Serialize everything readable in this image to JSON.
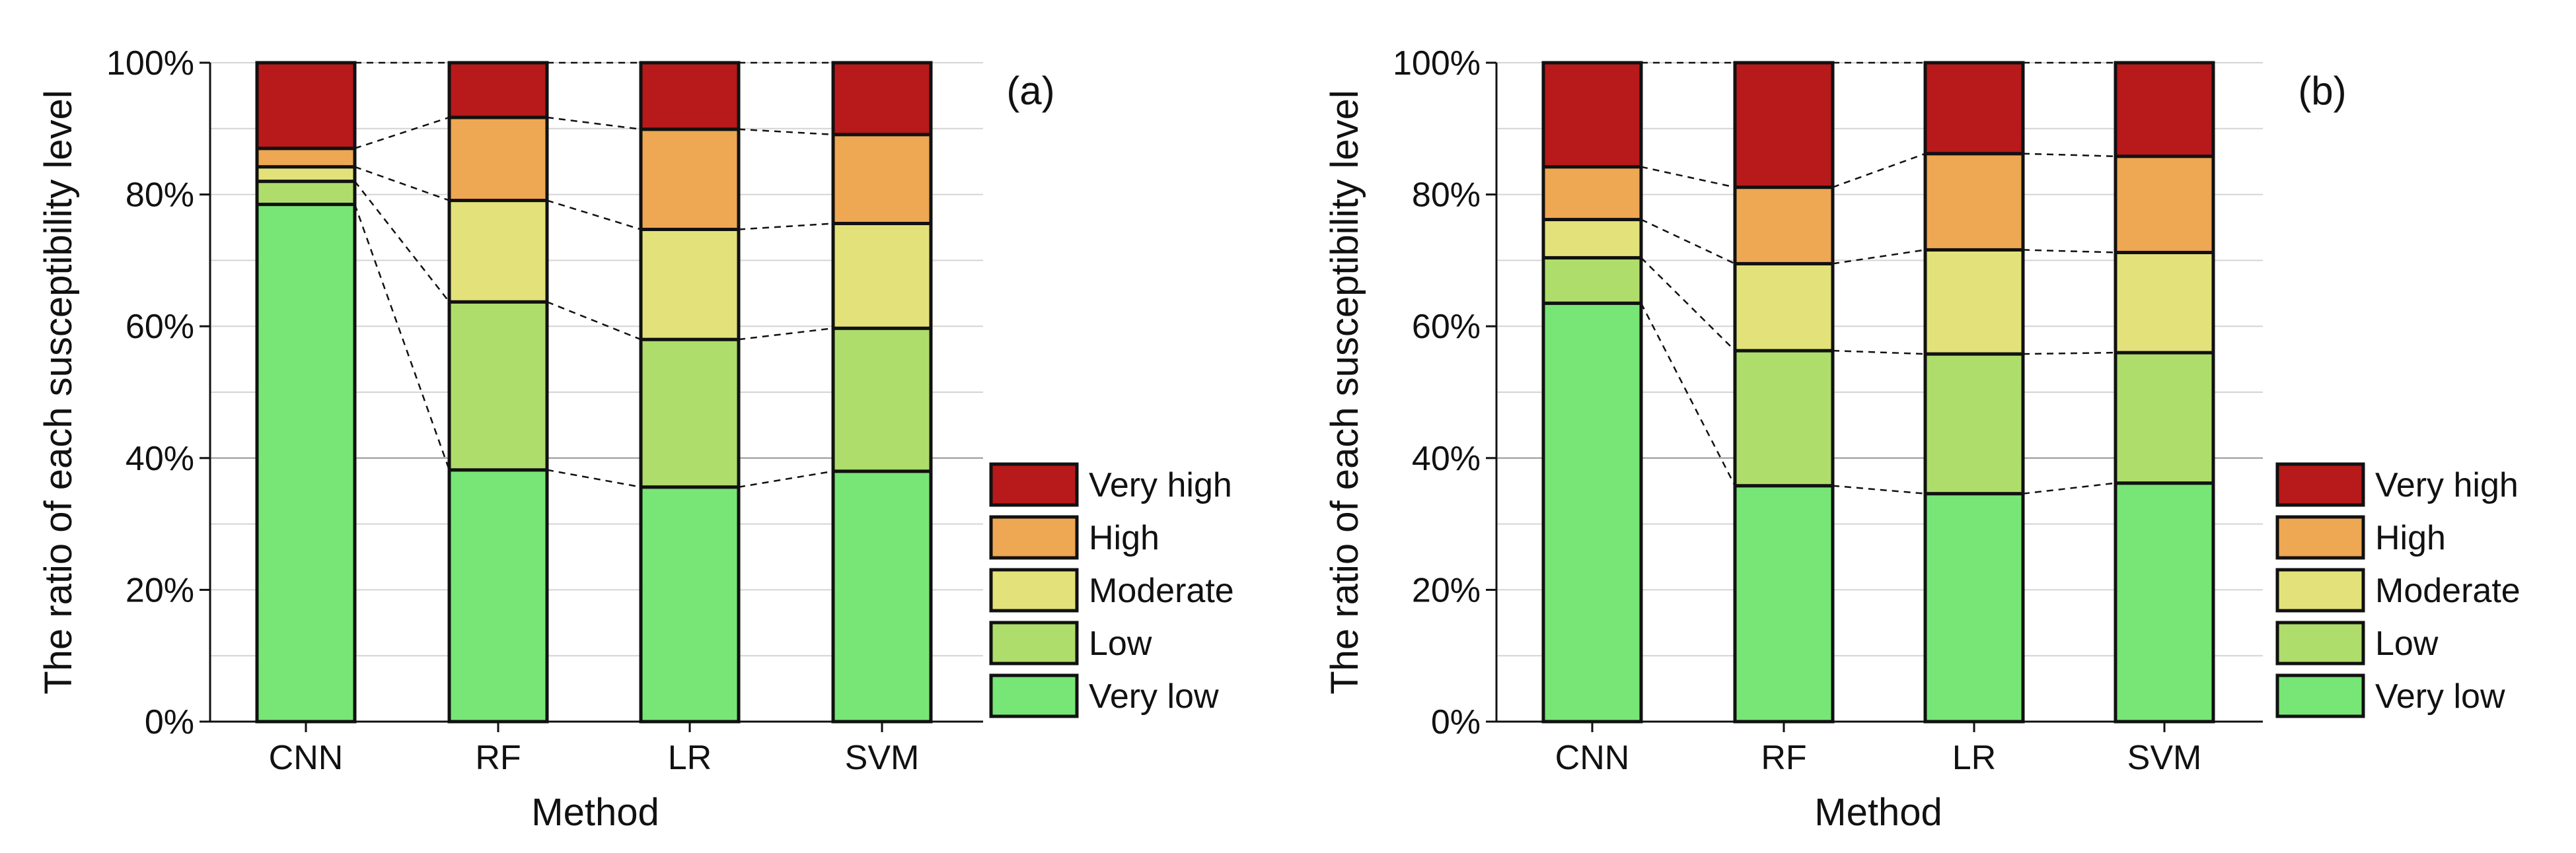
{
  "figure": {
    "legend_order": [
      "Very high",
      "High",
      "Moderate",
      "Low",
      "Very low"
    ]
  },
  "chart_data": [
    {
      "type": "bar",
      "stacked": true,
      "panel_label": "(a)",
      "xlabel": "Method",
      "ylabel": "The ratio of each susceptibility level",
      "categories": [
        "CNN",
        "RF",
        "LR",
        "SVM"
      ],
      "yticks": [
        "0%",
        "20%",
        "40%",
        "60%",
        "80%",
        "100%"
      ],
      "ylim": [
        0,
        100
      ],
      "legend_position": "bottom-right",
      "series": [
        {
          "name": "Very low",
          "color": "#77e676",
          "values": [
            78.5,
            38.2,
            35.6,
            38.0
          ]
        },
        {
          "name": "Low",
          "color": "#aedd6b",
          "values": [
            3.5,
            25.5,
            22.4,
            21.7
          ]
        },
        {
          "name": "Moderate",
          "color": "#e3e27a",
          "values": [
            2.2,
            15.4,
            16.7,
            15.9
          ]
        },
        {
          "name": "High",
          "color": "#eea752",
          "values": [
            2.8,
            12.6,
            15.2,
            13.5
          ]
        },
        {
          "name": "Very high",
          "color": "#b8191b",
          "values": [
            13.0,
            8.3,
            10.1,
            10.9
          ]
        }
      ]
    },
    {
      "type": "bar",
      "stacked": true,
      "panel_label": "(b)",
      "xlabel": "Method",
      "ylabel": "The ratio of each susceptibility level",
      "categories": [
        "CNN",
        "RF",
        "LR",
        "SVM"
      ],
      "yticks": [
        "0%",
        "20%",
        "40%",
        "60%",
        "80%",
        "100%"
      ],
      "ylim": [
        0,
        100
      ],
      "legend_position": "bottom-right",
      "series": [
        {
          "name": "Very low",
          "color": "#77e676",
          "values": [
            63.5,
            35.8,
            34.6,
            36.2
          ]
        },
        {
          "name": "Low",
          "color": "#aedd6b",
          "values": [
            6.9,
            20.5,
            21.2,
            19.8
          ]
        },
        {
          "name": "Moderate",
          "color": "#e3e27a",
          "values": [
            5.8,
            13.2,
            15.8,
            15.2
          ]
        },
        {
          "name": "High",
          "color": "#eea752",
          "values": [
            8.0,
            11.6,
            14.6,
            14.6
          ]
        },
        {
          "name": "Very high",
          "color": "#b8191b",
          "values": [
            15.8,
            18.9,
            13.8,
            14.2
          ]
        }
      ]
    }
  ]
}
